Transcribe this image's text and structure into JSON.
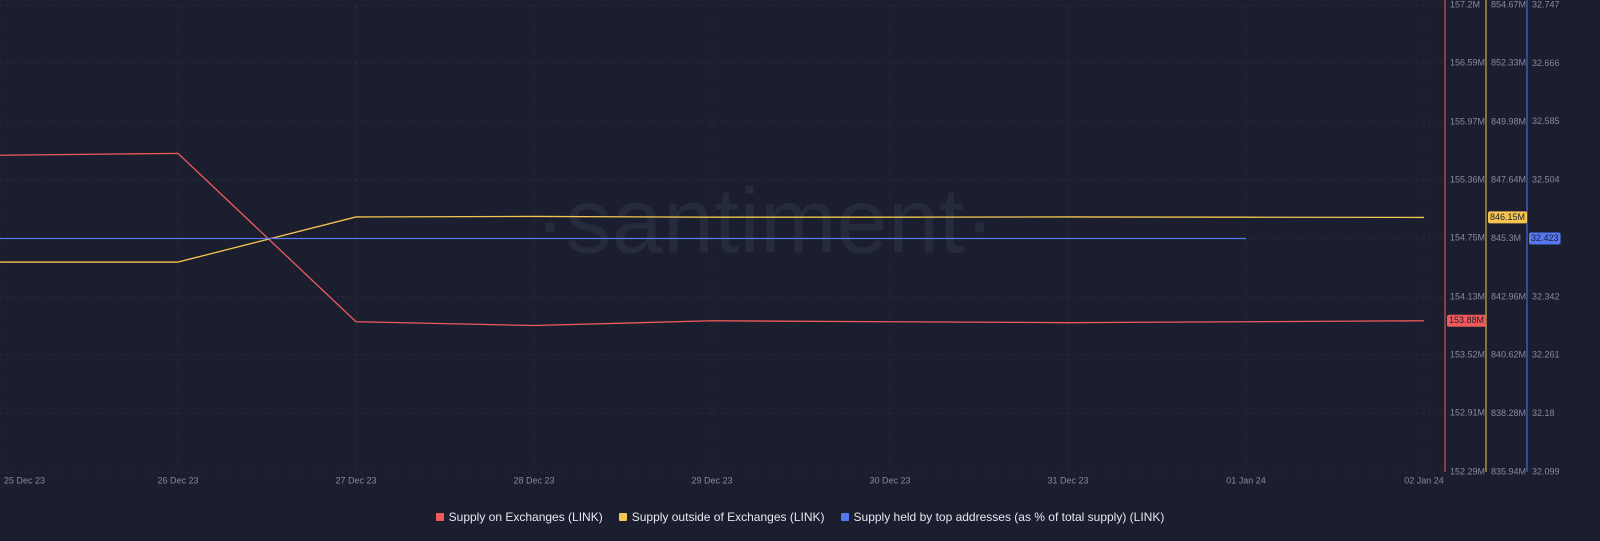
{
  "chart_data": {
    "type": "line",
    "watermark": "·santiment·",
    "categories": [
      "25 Dec 23",
      "26 Dec 23",
      "27 Dec 23",
      "28 Dec 23",
      "29 Dec 23",
      "30 Dec 23",
      "31 Dec 23",
      "01 Jan 24",
      "02 Jan 24"
    ],
    "series": [
      {
        "name": "Supply on Exchanges (LINK)",
        "color": "#ef5b5b",
        "axis": "y",
        "values": [
          155.62,
          155.64,
          153.87,
          153.83,
          153.88,
          153.87,
          153.86,
          153.87,
          153.88
        ],
        "last_value_label": "153.88M"
      },
      {
        "name": "Supply outside of Exchanges (LINK)",
        "color": "#f5c451",
        "axis": "y2",
        "values": [
          844.36,
          844.36,
          846.17,
          846.19,
          846.16,
          846.16,
          846.17,
          846.16,
          846.15
        ],
        "last_value_label": "846.15M"
      },
      {
        "name": "Supply held by top addresses (as % of total supply) (LINK)",
        "color": "#5677f0",
        "axis": "y3",
        "values": [
          32.423,
          32.423,
          32.423,
          32.423,
          32.423,
          32.423,
          32.423,
          32.423,
          null
        ],
        "last_value_label": "32.423"
      }
    ],
    "ylim": [
      152.29,
      157.2
    ],
    "yticks": [
      {
        "value": 157.2,
        "label": "157.2M"
      },
      {
        "value": 156.59,
        "label": "156.59M"
      },
      {
        "value": 155.97,
        "label": "155.97M"
      },
      {
        "value": 155.36,
        "label": "155.36M"
      },
      {
        "value": 154.75,
        "label": "154.75M"
      },
      {
        "value": 154.13,
        "label": "154.13M"
      },
      {
        "value": 153.52,
        "label": "153.52M"
      },
      {
        "value": 152.91,
        "label": "152.91M"
      },
      {
        "value": 152.29,
        "label": "152.29M"
      }
    ],
    "y2lim": [
      835.94,
      854.67
    ],
    "y2ticks": [
      {
        "value": 854.67,
        "label": "854.67M"
      },
      {
        "value": 852.33,
        "label": "852.33M"
      },
      {
        "value": 849.98,
        "label": "849.98M"
      },
      {
        "value": 847.64,
        "label": "847.64M"
      },
      {
        "value": 845.3,
        "label": "845.3M"
      },
      {
        "value": 842.96,
        "label": "842.96M"
      },
      {
        "value": 840.62,
        "label": "840.62M"
      },
      {
        "value": 838.28,
        "label": "838.28M"
      },
      {
        "value": 835.94,
        "label": "835.94M"
      }
    ],
    "y3lim": [
      32.099,
      32.747
    ],
    "y3ticks": [
      32.747,
      32.666,
      32.585,
      32.504,
      32.423,
      32.342,
      32.261,
      32.18,
      32.099
    ],
    "grid": true
  }
}
